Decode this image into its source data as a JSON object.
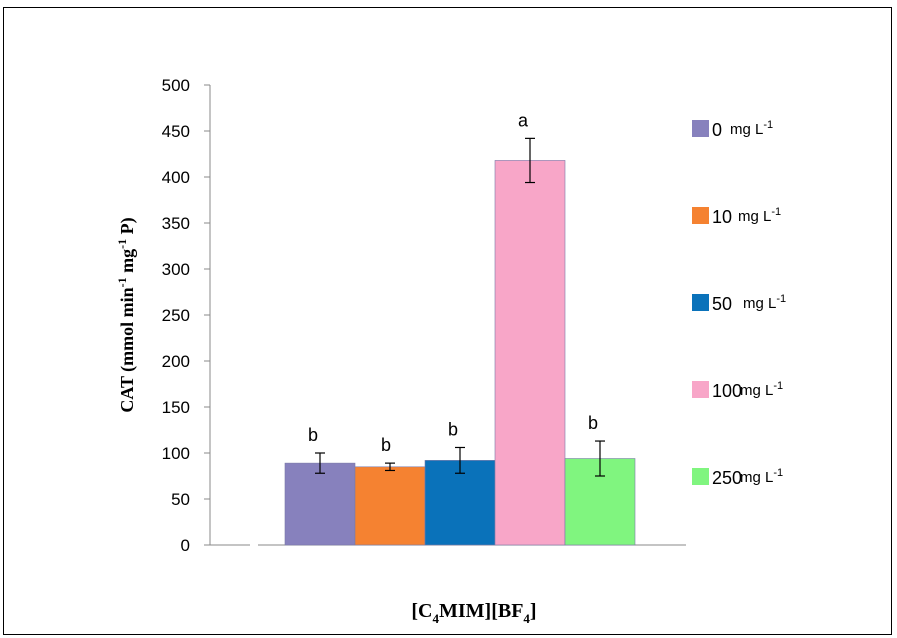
{
  "chart_data": {
    "type": "bar",
    "title": "",
    "xlabel": "[C4MIM][BF4]",
    "ylabel": "CAT (mmol min-1 mg-1 P)",
    "ylim": [
      0,
      500
    ],
    "yticks": [
      0,
      50,
      100,
      150,
      200,
      250,
      300,
      350,
      400,
      450,
      500
    ],
    "grid": false,
    "legend_position": "right",
    "categories": [
      "[C4MIM][BF4]"
    ],
    "series": [
      {
        "name": "0",
        "unit": "mg L-1",
        "values": [
          89
        ],
        "error": [
          11
        ],
        "significance": "b",
        "color": "#8781bd"
      },
      {
        "name": "10",
        "unit": "mg L-1",
        "values": [
          85
        ],
        "error": [
          4
        ],
        "significance": "b",
        "color": "#f58231"
      },
      {
        "name": "50",
        "unit": "mg L-1",
        "values": [
          92
        ],
        "error": [
          14
        ],
        "significance": "b",
        "color": "#0a72ba"
      },
      {
        "name": "100",
        "unit": "mg L-1",
        "values": [
          418
        ],
        "error": [
          24
        ],
        "significance": "a",
        "color": "#f8a6c8"
      },
      {
        "name": "250",
        "unit": "mg L-1",
        "values": [
          94
        ],
        "error": [
          19
        ],
        "significance": "b",
        "color": "#80f57f"
      }
    ]
  }
}
